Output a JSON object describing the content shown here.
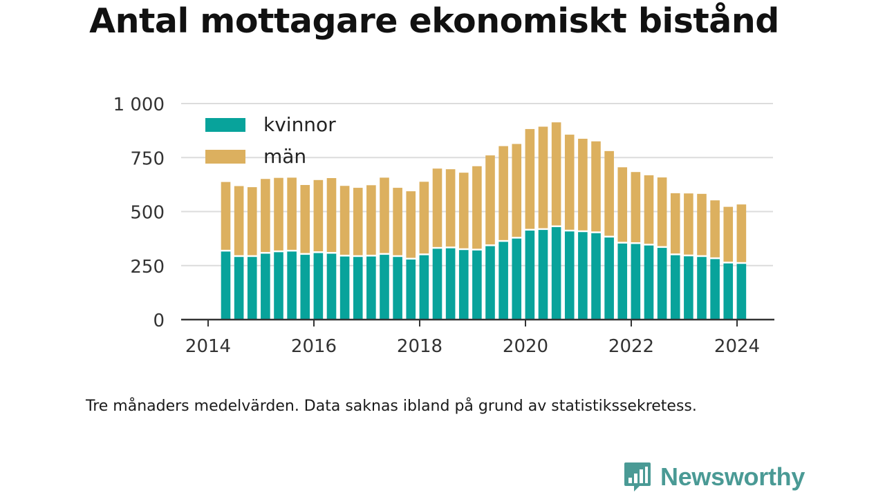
{
  "title": "Antal mottagare ekonomiskt bistånd",
  "footnote": "Tre månaders medelvärden. Data saknas ibland på grund av statistikssekretess.",
  "brand": {
    "name": "Newsworthy",
    "icon": "newsworthy-logo-icon",
    "color": "#4a9a95"
  },
  "chart_data": {
    "type": "bar",
    "stacked": true,
    "grid": true,
    "legend_position": "top-left",
    "ylim": [
      0,
      1000
    ],
    "y_ticks": [
      0,
      250,
      500,
      750,
      1000
    ],
    "y_tick_labels": [
      "0",
      "250",
      "500",
      "750",
      "1 000"
    ],
    "x_ticks": [
      2014,
      2016,
      2018,
      2020,
      2022,
      2024
    ],
    "x_tick_labels": [
      "2014",
      "2016",
      "2018",
      "2020",
      "2022",
      "2024"
    ],
    "x": [
      "2014-05",
      "2014-08",
      "2014-11",
      "2015-02",
      "2015-05",
      "2015-08",
      "2015-11",
      "2016-02",
      "2016-05",
      "2016-08",
      "2016-11",
      "2017-02",
      "2017-05",
      "2017-08",
      "2017-11",
      "2018-02",
      "2018-05",
      "2018-08",
      "2018-11",
      "2019-02",
      "2019-05",
      "2019-08",
      "2019-11",
      "2020-02",
      "2020-05",
      "2020-08",
      "2020-11",
      "2021-02",
      "2021-05",
      "2021-08",
      "2021-11",
      "2022-02",
      "2022-05",
      "2022-08",
      "2022-11",
      "2023-02",
      "2023-05",
      "2023-08",
      "2023-11",
      "2024-02"
    ],
    "series": [
      {
        "name": "kvinnor",
        "color": "#08a39b",
        "values": [
          315,
          290,
          290,
          305,
          312,
          315,
          300,
          308,
          305,
          292,
          290,
          292,
          300,
          290,
          278,
          298,
          328,
          330,
          322,
          320,
          340,
          360,
          375,
          412,
          415,
          428,
          408,
          405,
          400,
          380,
          352,
          350,
          343,
          332,
          298,
          293,
          290,
          280,
          260,
          258
        ]
      },
      {
        "name": "män",
        "color": "#dcb05f",
        "values": [
          322,
          328,
          323,
          346,
          344,
          342,
          323,
          338,
          350,
          327,
          320,
          330,
          357,
          320,
          316,
          340,
          371,
          366,
          358,
          390,
          420,
          443,
          438,
          470,
          478,
          485,
          448,
          432,
          425,
          400,
          353,
          333,
          325,
          326,
          287,
          291,
          292,
          272,
          262,
          275
        ]
      }
    ]
  }
}
